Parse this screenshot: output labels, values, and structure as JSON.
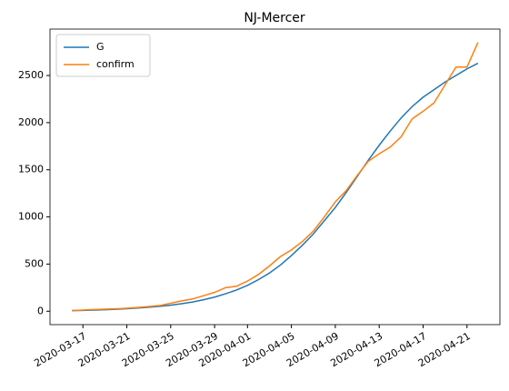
{
  "chart_data": {
    "type": "line",
    "title": "NJ-Mercer",
    "x": [
      "2020-03-16",
      "2020-03-17",
      "2020-03-18",
      "2020-03-19",
      "2020-03-20",
      "2020-03-21",
      "2020-03-22",
      "2020-03-23",
      "2020-03-24",
      "2020-03-25",
      "2020-03-26",
      "2020-03-27",
      "2020-03-28",
      "2020-03-29",
      "2020-03-30",
      "2020-03-31",
      "2020-04-01",
      "2020-04-02",
      "2020-04-03",
      "2020-04-04",
      "2020-04-05",
      "2020-04-06",
      "2020-04-07",
      "2020-04-08",
      "2020-04-09",
      "2020-04-10",
      "2020-04-11",
      "2020-04-12",
      "2020-04-13",
      "2020-04-14",
      "2020-04-15",
      "2020-04-16",
      "2020-04-17",
      "2020-04-18",
      "2020-04-19",
      "2020-04-20",
      "2020-04-21",
      "2020-04-22"
    ],
    "series": [
      {
        "name": "G",
        "color": "#1f77b4",
        "values": [
          6,
          9,
          12,
          16,
          21,
          27,
          34,
          42,
          52,
          64,
          80,
          98,
          122,
          150,
          185,
          225,
          275,
          335,
          405,
          490,
          590,
          700,
          820,
          960,
          1100,
          1260,
          1430,
          1600,
          1760,
          1910,
          2050,
          2170,
          2270,
          2350,
          2430,
          2500,
          2570,
          2630
        ]
      },
      {
        "name": "confirm",
        "color": "#ff7f0e",
        "values": [
          8,
          12,
          18,
          22,
          26,
          32,
          40,
          50,
          60,
          85,
          110,
          130,
          165,
          200,
          250,
          265,
          320,
          390,
          480,
          580,
          650,
          740,
          850,
          1000,
          1160,
          1280,
          1440,
          1590,
          1670,
          1740,
          1850,
          2040,
          2120,
          2210,
          2400,
          2590,
          2590,
          2850
        ]
      }
    ],
    "xlim": [
      "2020-03-14",
      "2020-04-24"
    ],
    "xticks": [
      "2020-03-17",
      "2020-03-21",
      "2020-03-25",
      "2020-03-29",
      "2020-04-01",
      "2020-04-05",
      "2020-04-09",
      "2020-04-13",
      "2020-04-17",
      "2020-04-21"
    ],
    "ylim": [
      -142,
      2992
    ],
    "yticks": [
      0,
      500,
      1000,
      1500,
      2000,
      2500
    ],
    "legend": "upper left",
    "grid": false
  }
}
